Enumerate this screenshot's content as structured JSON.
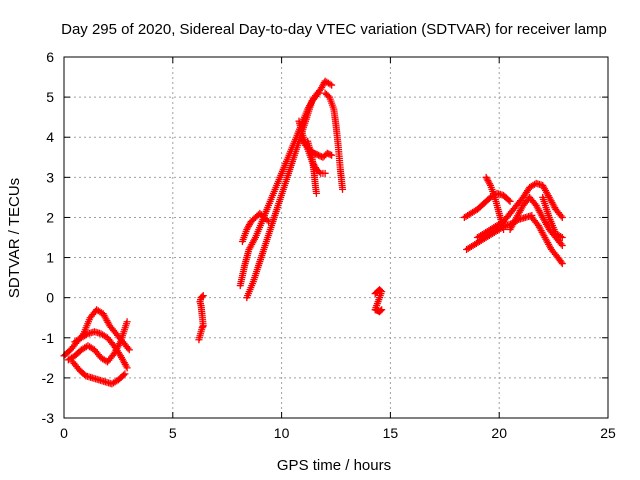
{
  "chart_data": {
    "type": "scatter",
    "title": "Day 295 of 2020, Sidereal Day-to-day VTEC variation (SDTVAR) for receiver lamp",
    "xlabel": "GPS time / hours",
    "ylabel": "SDTVAR / TECUs",
    "xlim": [
      0,
      25
    ],
    "ylim": [
      -3,
      6
    ],
    "xticks": [
      0,
      5,
      10,
      15,
      20,
      25
    ],
    "yticks": [
      -3,
      -2,
      -1,
      0,
      1,
      2,
      3,
      4,
      5,
      6
    ],
    "grid": true,
    "marker": "plus",
    "color": "#ff0000",
    "series": [
      {
        "x": [
          0.0,
          0.3,
          0.6,
          0.9,
          1.2,
          1.5,
          1.8,
          2.1,
          2.4,
          2.7,
          3.0
        ],
        "y": [
          -1.45,
          -1.3,
          -1.1,
          -0.9,
          -0.5,
          -0.3,
          -0.4,
          -0.7,
          -0.9,
          -1.1,
          -1.3
        ]
      },
      {
        "x": [
          0.4,
          0.7,
          1.0,
          1.3,
          1.6,
          1.9,
          2.2,
          2.5,
          2.8
        ],
        "y": [
          -1.6,
          -1.8,
          -1.95,
          -2.0,
          -2.05,
          -2.1,
          -2.15,
          -2.05,
          -1.9
        ]
      },
      {
        "x": [
          0.5,
          0.8,
          1.1,
          1.4,
          1.7,
          2.0,
          2.3,
          2.6,
          2.9
        ],
        "y": [
          -1.1,
          -1.0,
          -0.9,
          -0.85,
          -0.9,
          -1.0,
          -1.2,
          -1.45,
          -1.75
        ]
      },
      {
        "x": [
          0.2,
          0.5,
          0.8,
          1.1,
          1.4,
          1.7,
          2.0,
          2.3,
          2.6,
          2.9
        ],
        "y": [
          -1.55,
          -1.45,
          -1.3,
          -1.2,
          -1.3,
          -1.5,
          -1.6,
          -1.4,
          -1.1,
          -0.6
        ]
      },
      {
        "x": [
          6.2,
          6.25,
          6.3,
          6.35,
          6.4,
          6.3,
          6.25,
          6.3,
          6.4
        ],
        "y": [
          -1.05,
          -0.95,
          -0.85,
          -0.75,
          -0.7,
          -0.2,
          -0.1,
          0.0,
          0.05
        ]
      },
      {
        "x": [
          8.1,
          8.3,
          8.5,
          8.8,
          9.1,
          9.4,
          9.7,
          10.0,
          10.3,
          10.6,
          10.9,
          11.2,
          11.5,
          11.8,
          12.0,
          12.3
        ],
        "y": [
          0.3,
          0.8,
          1.2,
          1.5,
          1.9,
          2.3,
          2.7,
          3.1,
          3.5,
          3.9,
          4.3,
          4.7,
          5.0,
          5.2,
          5.4,
          5.3
        ]
      },
      {
        "x": [
          8.4,
          8.7,
          9.0,
          9.3,
          9.6,
          9.9,
          10.2,
          10.5,
          10.8,
          11.1,
          11.4,
          11.7
        ],
        "y": [
          0.0,
          0.4,
          0.9,
          1.4,
          1.9,
          2.4,
          2.9,
          3.4,
          3.9,
          4.4,
          4.9,
          5.1
        ]
      },
      {
        "x": [
          8.2,
          8.4,
          8.6,
          8.8,
          9.0,
          9.2,
          9.4
        ],
        "y": [
          1.4,
          1.7,
          1.9,
          2.0,
          2.1,
          2.0,
          1.9
        ]
      },
      {
        "x": [
          10.8,
          11.0,
          11.2,
          11.4,
          11.6,
          11.8,
          12.0
        ],
        "y": [
          4.4,
          4.0,
          3.7,
          3.4,
          3.2,
          3.1,
          3.1
        ]
      },
      {
        "x": [
          10.9,
          11.1,
          11.3,
          11.5,
          11.7,
          11.9,
          12.1,
          12.3
        ],
        "y": [
          4.0,
          3.8,
          3.7,
          3.6,
          3.55,
          3.5,
          3.6,
          3.55
        ]
      },
      {
        "x": [
          12.0,
          12.2,
          12.4,
          12.5,
          12.6,
          12.7,
          12.8
        ],
        "y": [
          5.1,
          5.0,
          4.7,
          4.3,
          3.8,
          3.2,
          2.7
        ]
      },
      {
        "x": [
          11.2,
          11.4,
          11.5,
          11.55,
          11.6
        ],
        "y": [
          3.9,
          3.5,
          3.1,
          2.8,
          2.6
        ]
      },
      {
        "x": [
          14.3,
          14.4,
          14.5,
          14.6,
          14.3,
          14.4,
          14.5,
          14.6
        ],
        "y": [
          0.1,
          0.15,
          0.2,
          0.15,
          -0.3,
          -0.32,
          -0.35,
          -0.3
        ]
      },
      {
        "x": [
          18.4,
          18.7,
          19.0,
          19.3,
          19.6,
          19.9,
          20.2,
          20.5
        ],
        "y": [
          2.0,
          2.1,
          2.2,
          2.35,
          2.5,
          2.6,
          2.55,
          2.4
        ]
      },
      {
        "x": [
          18.5,
          18.8,
          19.1,
          19.4,
          19.7,
          20.0,
          20.3,
          20.6,
          20.9,
          21.2,
          21.5
        ],
        "y": [
          1.2,
          1.3,
          1.4,
          1.5,
          1.6,
          1.7,
          1.8,
          1.85,
          1.95,
          2.0,
          2.05
        ]
      },
      {
        "x": [
          19.4,
          19.6,
          19.8,
          20.0,
          20.2
        ],
        "y": [
          3.0,
          2.8,
          2.5,
          2.1,
          1.7
        ]
      },
      {
        "x": [
          19.0,
          19.3,
          19.6,
          19.9,
          20.2,
          20.5,
          20.8,
          21.1,
          21.4,
          21.7,
          22.0,
          22.3,
          22.6,
          22.9
        ],
        "y": [
          1.5,
          1.6,
          1.7,
          1.8,
          1.9,
          2.1,
          2.3,
          2.5,
          2.75,
          2.85,
          2.8,
          2.5,
          2.2,
          2.0
        ]
      },
      {
        "x": [
          20.5,
          20.8,
          21.1,
          21.4,
          21.7,
          22.0,
          22.3,
          22.6,
          22.9
        ],
        "y": [
          1.7,
          2.0,
          2.3,
          2.5,
          2.3,
          2.0,
          1.7,
          1.5,
          1.3
        ]
      },
      {
        "x": [
          21.5,
          21.8,
          22.1,
          22.4,
          22.7,
          22.9
        ],
        "y": [
          2.0,
          1.8,
          1.5,
          1.2,
          1.0,
          0.85
        ]
      },
      {
        "x": [
          22.0,
          22.3,
          22.6,
          22.9
        ],
        "y": [
          2.5,
          2.0,
          1.6,
          1.5
        ]
      }
    ]
  }
}
